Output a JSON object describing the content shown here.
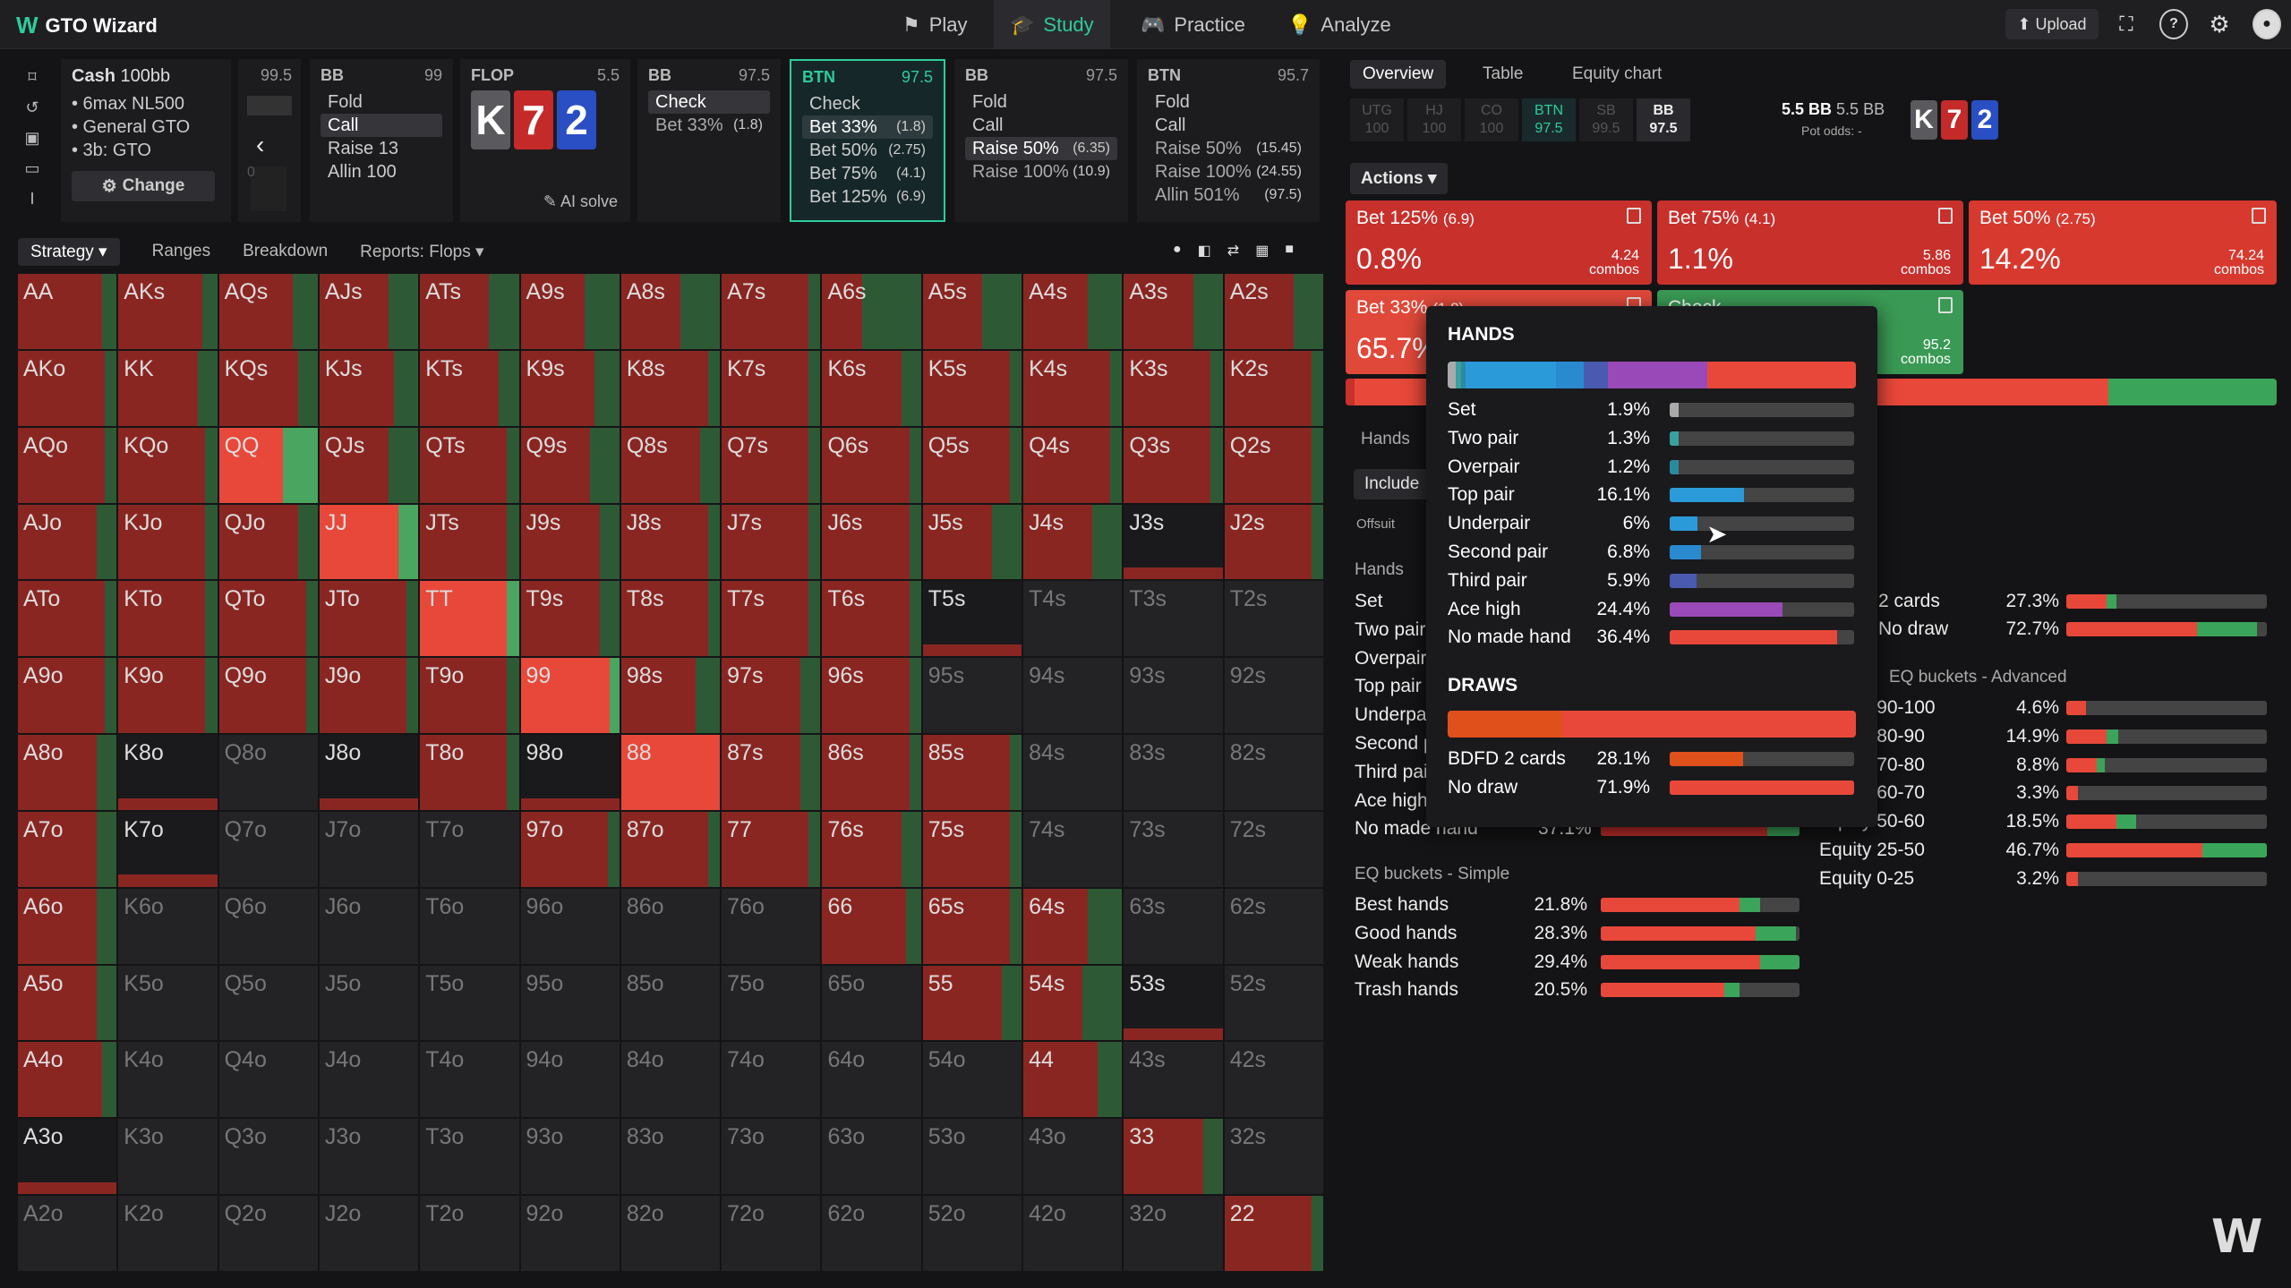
{
  "topbar": {
    "brand": "GTO Wizard",
    "nav": [
      "Play",
      "Study",
      "Practice",
      "Analyze"
    ],
    "upload": "Upload"
  },
  "nodes": {
    "cash": {
      "title": "Cash",
      "stack": "100bb",
      "lines": [
        "• 6max NL500",
        "• General GTO",
        "• 3b: GTO"
      ],
      "change": "Change"
    },
    "stackcol": {
      "value": "99.5",
      "zero": "0"
    },
    "bb1": {
      "pos": "BB",
      "stack": "99",
      "actions": [
        "Fold",
        "Call",
        "Raise 13",
        "Allin 100"
      ]
    },
    "flop": {
      "title": "FLOP",
      "pot": "5.5",
      "ai": "AI solve"
    },
    "bb2": {
      "pos": "BB",
      "stack": "97.5",
      "actions": [
        "Check",
        "Bet 33%"
      ],
      "size": "(1.8)"
    },
    "btn": {
      "pos": "BTN",
      "stack": "97.5",
      "actions": [
        [
          "Check",
          ""
        ],
        [
          "Bet 33%",
          "(1.8)"
        ],
        [
          "Bet 50%",
          "(2.75)"
        ],
        [
          "Bet 75%",
          "(4.1)"
        ],
        [
          "Bet 125%",
          "(6.9)"
        ]
      ]
    },
    "bb3": {
      "pos": "BB",
      "stack": "97.5",
      "actions": [
        [
          "Fold",
          ""
        ],
        [
          "Call",
          ""
        ],
        [
          "Raise 50%",
          "(6.35)"
        ],
        [
          "Raise 100%",
          "(10.9)"
        ]
      ]
    },
    "btn2": {
      "pos": "BTN",
      "stack": "95.7",
      "actions": [
        [
          "Fold",
          ""
        ],
        [
          "Call",
          ""
        ],
        [
          "Raise 50%",
          "(15.45)"
        ],
        [
          "Raise 100%",
          "(24.55)"
        ],
        [
          "Allin 501%",
          "(97.5)"
        ]
      ]
    }
  },
  "board": [
    {
      "r": "K",
      "c": "#5a5a5e"
    },
    {
      "r": "7",
      "c": "#c42a2a"
    },
    {
      "r": "2",
      "c": "#2a4fc4"
    }
  ],
  "tabs": [
    "Strategy",
    "Ranges",
    "Breakdown",
    "Reports: Flops"
  ],
  "grid": [
    [
      "AA",
      "AKs",
      "AQs",
      "AJs",
      "ATs",
      "A9s",
      "A8s",
      "A7s",
      "A6s",
      "A5s",
      "A4s",
      "A3s",
      "A2s"
    ],
    [
      "AKo",
      "KK",
      "KQs",
      "KJs",
      "KTs",
      "K9s",
      "K8s",
      "K7s",
      "K6s",
      "K5s",
      "K4s",
      "K3s",
      "K2s"
    ],
    [
      "AQo",
      "KQo",
      "QQ",
      "QJs",
      "QTs",
      "Q9s",
      "Q8s",
      "Q7s",
      "Q6s",
      "Q5s",
      "Q4s",
      "Q3s",
      "Q2s"
    ],
    [
      "AJo",
      "KJo",
      "QJo",
      "JJ",
      "JTs",
      "J9s",
      "J8s",
      "J7s",
      "J6s",
      "J5s",
      "J4s",
      "J3s",
      "J2s"
    ],
    [
      "ATo",
      "KTo",
      "QTo",
      "JTo",
      "TT",
      "T9s",
      "T8s",
      "T7s",
      "T6s",
      "T5s",
      "T4s",
      "T3s",
      "T2s"
    ],
    [
      "A9o",
      "K9o",
      "Q9o",
      "J9o",
      "T9o",
      "99",
      "98s",
      "97s",
      "96s",
      "95s",
      "94s",
      "93s",
      "92s"
    ],
    [
      "A8o",
      "K8o",
      "Q8o",
      "J8o",
      "T8o",
      "98o",
      "88",
      "87s",
      "86s",
      "85s",
      "84s",
      "83s",
      "82s"
    ],
    [
      "A7o",
      "K7o",
      "Q7o",
      "J7o",
      "T7o",
      "97o",
      "87o",
      "77",
      "76s",
      "75s",
      "74s",
      "73s",
      "72s"
    ],
    [
      "A6o",
      "K6o",
      "Q6o",
      "J6o",
      "T6o",
      "96o",
      "86o",
      "76o",
      "66",
      "65s",
      "64s",
      "63s",
      "62s"
    ],
    [
      "A5o",
      "K5o",
      "Q5o",
      "J5o",
      "T5o",
      "95o",
      "85o",
      "75o",
      "65o",
      "55",
      "54s",
      "53s",
      "52s"
    ],
    [
      "A4o",
      "K4o",
      "Q4o",
      "J4o",
      "T4o",
      "94o",
      "84o",
      "74o",
      "64o",
      "54o",
      "44",
      "43s",
      "42s"
    ],
    [
      "A3o",
      "K3o",
      "Q3o",
      "J3o",
      "T3o",
      "93o",
      "83o",
      "73o",
      "63o",
      "53o",
      "43o",
      "33",
      "32s"
    ],
    [
      "A2o",
      "K2o",
      "Q2o",
      "J2o",
      "T2o",
      "92o",
      "82o",
      "72o",
      "62o",
      "52o",
      "42o",
      "32o",
      "22"
    ]
  ],
  "right": {
    "tabs": [
      "Overview",
      "Table",
      "Equity chart"
    ],
    "positions": [
      [
        "UTG",
        "100"
      ],
      [
        "HJ",
        "100"
      ],
      [
        "CO",
        "100"
      ],
      [
        "BTN",
        "97.5"
      ],
      [
        "SB",
        "99.5"
      ],
      [
        "BB",
        "97.5"
      ]
    ],
    "pot": "5.5 BB",
    "pot2": "5.5 BB",
    "potodds": "Pot odds: -",
    "actions_label": "Actions",
    "boxes": [
      {
        "t": "Bet 125%",
        "s": "(6.9)",
        "p": "0.8%",
        "c": "4.24",
        "color": "#c8302c"
      },
      {
        "t": "Bet 75%",
        "s": "(4.1)",
        "p": "1.1%",
        "c": "5.86",
        "color": "#c8302c"
      },
      {
        "t": "Bet 50%",
        "s": "(2.75)",
        "p": "14.2%",
        "c": "74.24",
        "color": "#d8392f"
      },
      {
        "t": "Bet 33%",
        "s": "(1.8)",
        "p": "65.7%",
        "c": "",
        "color": "#e0493a"
      },
      {
        "t": "Check",
        "s": "",
        "p": "",
        "c": "95.2",
        "color": "#3a9a55"
      }
    ],
    "combos": "combos",
    "hands_label": "Hands",
    "include": "Include",
    "offsuit": "Offsuit",
    "hands_list": [
      "Set",
      "Two pair",
      "Overpair",
      "Top pair",
      "Underpair",
      "Second pair",
      "Third pair",
      "Ace high",
      "No made hand"
    ],
    "hands_last_pct": "37.1%",
    "draws_right": [
      [
        "2 cards",
        "27.3%"
      ],
      [
        "No draw",
        "72.7%"
      ]
    ],
    "eq_adv_title": "EQ buckets - Advanced",
    "eq_adv": [
      [
        "Equity 90-100",
        "4.6%"
      ],
      [
        "Equity 80-90",
        "14.9%"
      ],
      [
        "Equity 70-80",
        "8.8%"
      ],
      [
        "Equity 60-70",
        "3.3%"
      ],
      [
        "Equity 50-60",
        "18.5%"
      ],
      [
        "Equity 25-50",
        "46.7%"
      ],
      [
        "Equity 0-25",
        "3.2%"
      ]
    ],
    "eq_simple_title": "EQ buckets - Simple",
    "eq_simple": [
      [
        "Best hands",
        "21.8%"
      ],
      [
        "Good hands",
        "28.3%"
      ],
      [
        "Weak hands",
        "29.4%"
      ],
      [
        "Trash hands",
        "20.5%"
      ]
    ]
  },
  "popup": {
    "hands_title": "HANDS",
    "hands": [
      [
        "Set",
        "1.9%",
        0.019,
        "#aaaaaa"
      ],
      [
        "Two pair",
        "1.3%",
        0.013,
        "#3aa0a0"
      ],
      [
        "Overpair",
        "1.2%",
        0.012,
        "#2a8aa0"
      ],
      [
        "Top pair",
        "16.1%",
        0.161,
        "#2a9ad8"
      ],
      [
        "Underpair",
        "6%",
        0.06,
        "#2a9ad8"
      ],
      [
        "Second pair",
        "6.8%",
        0.068,
        "#2a8ad0"
      ],
      [
        "Third pair",
        "5.9%",
        0.059,
        "#4a5ab0"
      ],
      [
        "Ace high",
        "24.4%",
        0.244,
        "#9a4ab8"
      ],
      [
        "No made hand",
        "36.4%",
        0.364,
        "#e8483a"
      ]
    ],
    "draws_title": "DRAWS",
    "draws": [
      [
        "BDFD 2 cards",
        "28.1%",
        0.281,
        "#e0501a"
      ],
      [
        "No draw",
        "71.9%",
        0.719,
        "#e8483a"
      ]
    ]
  }
}
